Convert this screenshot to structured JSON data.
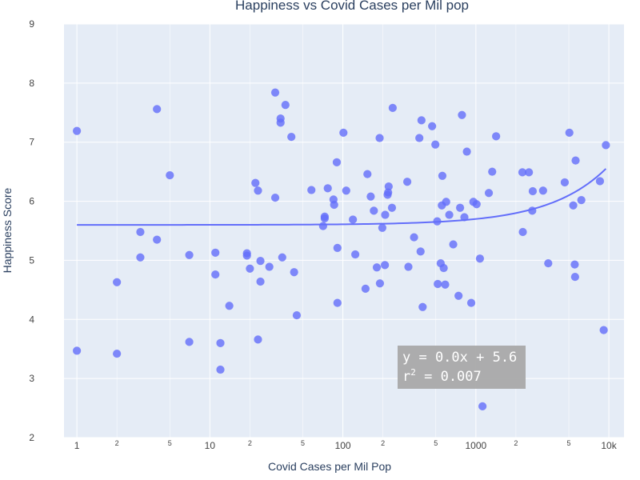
{
  "chart_data": {
    "type": "scatter",
    "title": "Happiness vs Covid Cases per Mil pop",
    "xlabel": "Covid Cases per Mil Pop",
    "ylabel": "Happiness Score",
    "xscale": "log",
    "xlim": [
      0.8,
      13000
    ],
    "ylim": [
      2,
      9
    ],
    "y_ticks": [
      2,
      3,
      4,
      5,
      6,
      7,
      8,
      9
    ],
    "x_major_ticks": [
      {
        "value": 1,
        "label": "1"
      },
      {
        "value": 10,
        "label": "10"
      },
      {
        "value": 100,
        "label": "100"
      },
      {
        "value": 1000,
        "label": "1000"
      },
      {
        "value": 10000,
        "label": "10k"
      }
    ],
    "x_minor_ticks": [
      {
        "value": 2,
        "label": "2"
      },
      {
        "value": 5,
        "label": "5"
      },
      {
        "value": 20,
        "label": "2"
      },
      {
        "value": 50,
        "label": "5"
      },
      {
        "value": 200,
        "label": "2"
      },
      {
        "value": 500,
        "label": "5"
      },
      {
        "value": 2000,
        "label": "2"
      },
      {
        "value": 5000,
        "label": "5"
      }
    ],
    "grid": true,
    "colors": {
      "background": "#e5ecf6",
      "grid": "#ffffff",
      "marker": "#636efa",
      "trendline": "#636efa",
      "annotation_bg": "#a9a9a9",
      "text": "#2a3f5f",
      "tick_text": "#444444"
    },
    "trendline": {
      "slope": 0.0001,
      "intercept": 5.6,
      "x_range": [
        1,
        9500
      ]
    },
    "annotation": {
      "line1": "y = 0.0x + 5.6",
      "line2_prefix": "r",
      "line2_sup": "2",
      "line2_suffix": " = 0.007"
    },
    "series": [
      {
        "points": [
          [
            1,
            7.19
          ],
          [
            1,
            3.47
          ],
          [
            2,
            4.63
          ],
          [
            2,
            3.42
          ],
          [
            3,
            5.48
          ],
          [
            3,
            5.05
          ],
          [
            4,
            7.56
          ],
          [
            4,
            5.35
          ],
          [
            5,
            6.44
          ],
          [
            7,
            5.09
          ],
          [
            7,
            3.62
          ],
          [
            11,
            5.13
          ],
          [
            11,
            4.76
          ],
          [
            12,
            3.6
          ],
          [
            12,
            3.15
          ],
          [
            14,
            4.23
          ],
          [
            19,
            5.12
          ],
          [
            19,
            5.08
          ],
          [
            20,
            4.86
          ],
          [
            22,
            6.31
          ],
          [
            23,
            6.18
          ],
          [
            23,
            3.66
          ],
          [
            24,
            4.99
          ],
          [
            24,
            4.64
          ],
          [
            28,
            4.89
          ],
          [
            31,
            7.84
          ],
          [
            31,
            6.06
          ],
          [
            34,
            7.4
          ],
          [
            34,
            7.33
          ],
          [
            35,
            5.05
          ],
          [
            37,
            7.63
          ],
          [
            41,
            7.09
          ],
          [
            43,
            4.8
          ],
          [
            45,
            4.07
          ],
          [
            58,
            6.19
          ],
          [
            71,
            5.58
          ],
          [
            73,
            5.74
          ],
          [
            73,
            5.71
          ],
          [
            77,
            6.22
          ],
          [
            85,
            6.03
          ],
          [
            86,
            5.94
          ],
          [
            90,
            6.66
          ],
          [
            91,
            5.21
          ],
          [
            91,
            4.28
          ],
          [
            101,
            7.16
          ],
          [
            106,
            6.18
          ],
          [
            119,
            5.69
          ],
          [
            124,
            5.1
          ],
          [
            148,
            4.52
          ],
          [
            153,
            6.46
          ],
          [
            162,
            6.08
          ],
          [
            171,
            5.84
          ],
          [
            180,
            4.88
          ],
          [
            189,
            7.07
          ],
          [
            190,
            4.61
          ],
          [
            198,
            5.55
          ],
          [
            207,
            4.92
          ],
          [
            208,
            5.77
          ],
          [
            217,
            6.11
          ],
          [
            219,
            6.15
          ],
          [
            221,
            6.25
          ],
          [
            234,
            5.89
          ],
          [
            237,
            7.58
          ],
          [
            305,
            6.33
          ],
          [
            311,
            4.89
          ],
          [
            343,
            5.39
          ],
          [
            376,
            7.07
          ],
          [
            384,
            5.15
          ],
          [
            390,
            7.37
          ],
          [
            398,
            4.21
          ],
          [
            469,
            7.27
          ],
          [
            496,
            6.96
          ],
          [
            512,
            5.66
          ],
          [
            517,
            4.6
          ],
          [
            544,
            4.95
          ],
          [
            555,
            5.93
          ],
          [
            560,
            6.43
          ],
          [
            573,
            4.87
          ],
          [
            588,
            4.59
          ],
          [
            598,
            5.99
          ],
          [
            631,
            5.77
          ],
          [
            676,
            5.27
          ],
          [
            741,
            4.4
          ],
          [
            761,
            5.89
          ],
          [
            786,
            7.46
          ],
          [
            820,
            5.73
          ],
          [
            856,
            6.84
          ],
          [
            923,
            4.28
          ],
          [
            958,
            5.99
          ],
          [
            1013,
            5.95
          ],
          [
            1073,
            5.03
          ],
          [
            1122,
            2.53
          ],
          [
            1252,
            6.14
          ],
          [
            1327,
            6.5
          ],
          [
            1420,
            7.1
          ],
          [
            2239,
            6.49
          ],
          [
            2255,
            5.48
          ],
          [
            2506,
            6.49
          ],
          [
            2655,
            5.84
          ],
          [
            2678,
            6.17
          ],
          [
            3201,
            6.18
          ],
          [
            3502,
            4.95
          ],
          [
            4660,
            6.32
          ],
          [
            5049,
            7.16
          ],
          [
            5399,
            5.93
          ],
          [
            5541,
            4.93
          ],
          [
            5572,
            4.72
          ],
          [
            5625,
            6.69
          ],
          [
            6211,
            6.02
          ],
          [
            8572,
            6.34
          ],
          [
            9148,
            3.82
          ],
          [
            9502,
            6.95
          ]
        ]
      }
    ]
  }
}
